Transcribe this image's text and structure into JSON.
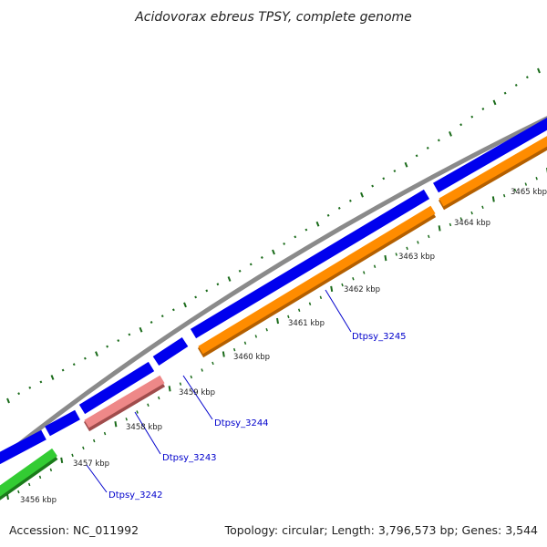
{
  "title": "Acidovorax ebreus TPSY, complete genome",
  "footer": {
    "accession": "Accession: NC_011992",
    "summary": "Topology: circular; Length: 3,796,573 bp; Genes: 3,544"
  },
  "colors": {
    "backbone": "#8a8a8a",
    "cds_forward": "#0000ee",
    "cds_reverse": "#ff8c00",
    "cds_reverse_dark": "#b35f00",
    "rna": "#ee8888",
    "rna_dark": "#a04c4c",
    "green_feature": "#33cc33",
    "green_feature_dark": "#1a7a1a",
    "dots": "#1a6b1a",
    "ticks": "#1a6b1a",
    "gene_label": "#0000cc",
    "leader_line": "#0000cc"
  },
  "scale_labels": [
    "3456 kbp",
    "3457 kbp",
    "3458 kbp",
    "3459 kbp",
    "3460 kbp",
    "3461 kbp",
    "3462 kbp",
    "3463 kbp",
    "3464 kbp",
    "3465 kbp"
  ],
  "gene_labels": [
    "Dtpsy_3242",
    "Dtpsy_3243",
    "Dtpsy_3244",
    "Dtpsy_3245"
  ]
}
